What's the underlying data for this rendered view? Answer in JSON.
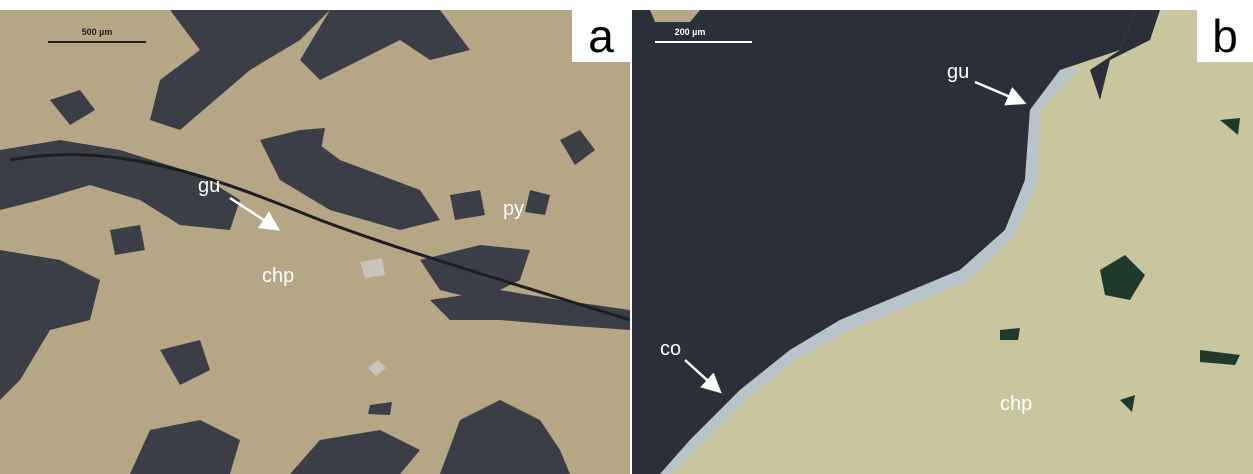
{
  "panels": [
    {
      "label": "a",
      "scale_bar": "500 µm",
      "annotations": [
        "gu",
        "py",
        "chp"
      ]
    },
    {
      "label": "b",
      "scale_bar": "200 µm",
      "annotations": [
        "gu",
        "co",
        "chp"
      ]
    }
  ]
}
